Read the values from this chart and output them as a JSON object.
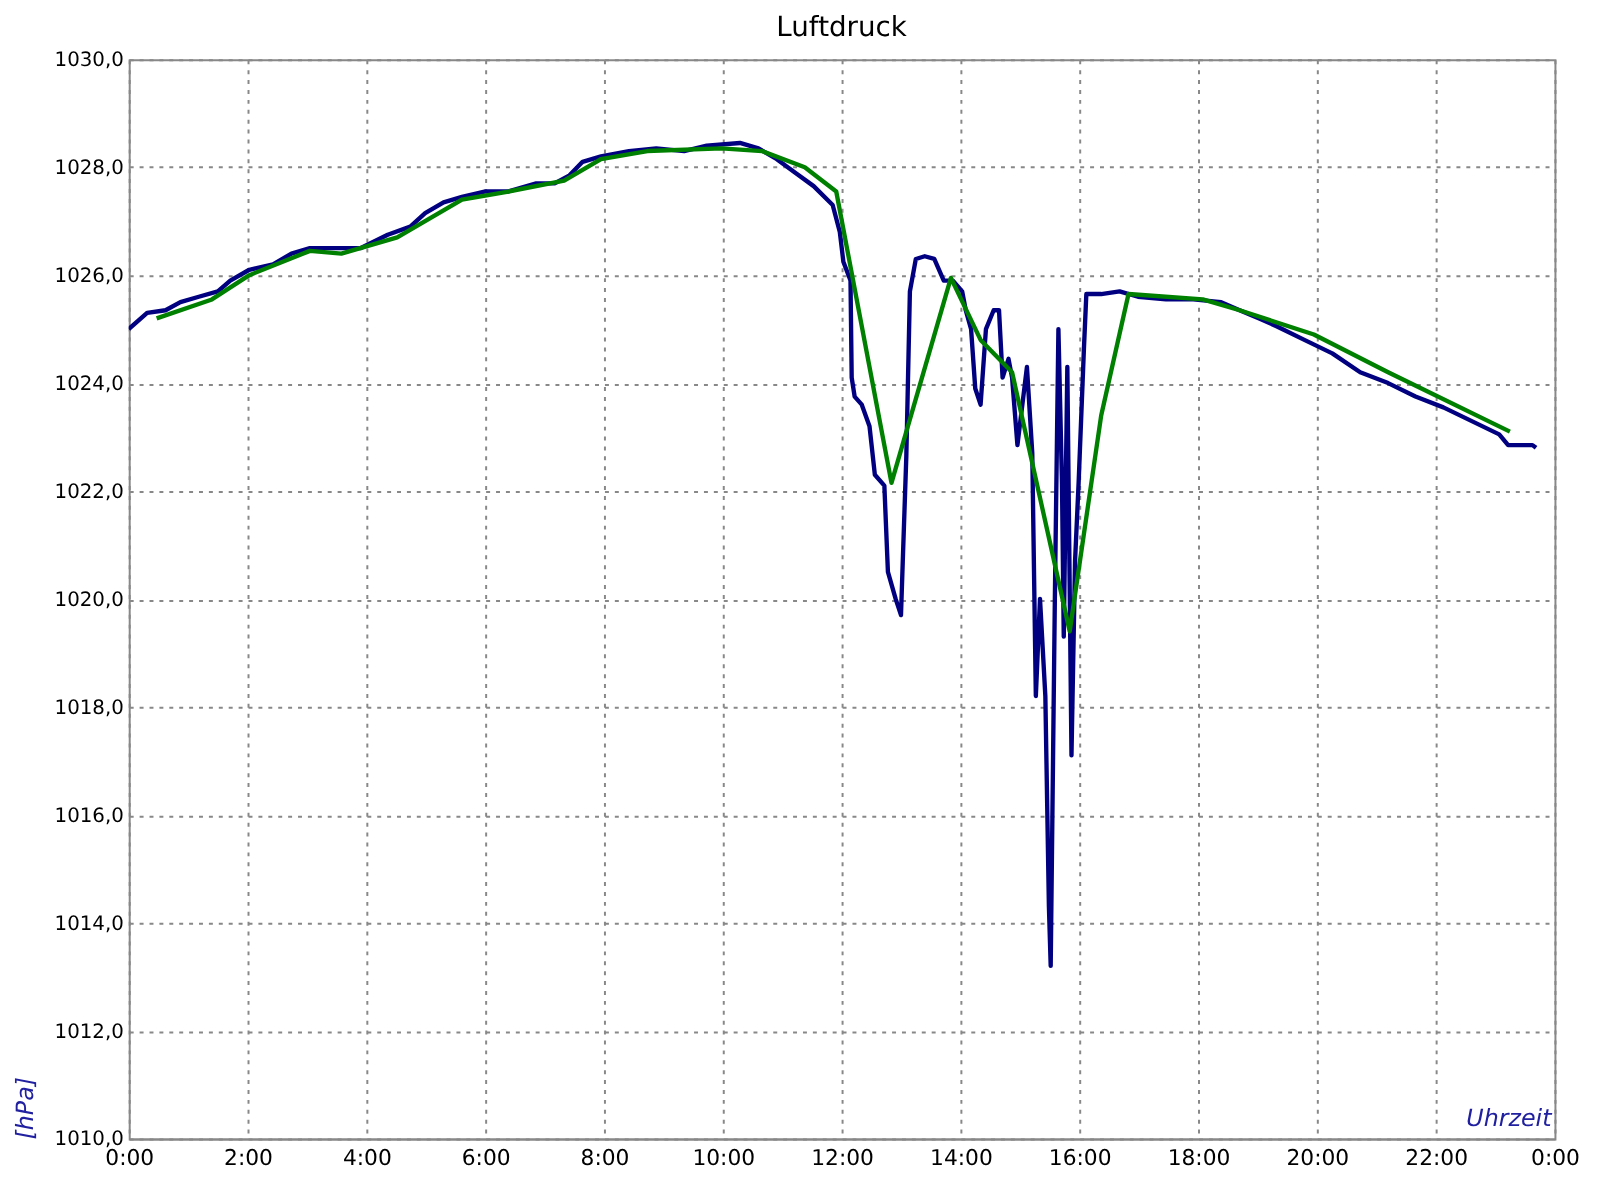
{
  "chart_data": {
    "type": "line",
    "title": "Luftdruck",
    "xlabel": "Uhrzeit",
    "ylabel": "[hPa]",
    "xlim": [
      0,
      24
    ],
    "ylim": [
      1010,
      1030
    ],
    "xticks": [
      {
        "value": 0,
        "label": "0:00"
      },
      {
        "value": 2,
        "label": "2:00"
      },
      {
        "value": 4,
        "label": "4:00"
      },
      {
        "value": 6,
        "label": "6:00"
      },
      {
        "value": 8,
        "label": "8:00"
      },
      {
        "value": 10,
        "label": "10:00"
      },
      {
        "value": 12,
        "label": "12:00"
      },
      {
        "value": 14,
        "label": "14:00"
      },
      {
        "value": 16,
        "label": "16:00"
      },
      {
        "value": 18,
        "label": "18:00"
      },
      {
        "value": 20,
        "label": "20:00"
      },
      {
        "value": 22,
        "label": "22:00"
      },
      {
        "value": 24,
        "label": "0:00"
      }
    ],
    "yticks": [
      {
        "value": 1010,
        "label": "1010,0"
      },
      {
        "value": 1012,
        "label": "1012,0"
      },
      {
        "value": 1014,
        "label": "1014,0"
      },
      {
        "value": 1016,
        "label": "1016,0"
      },
      {
        "value": 1018,
        "label": "1018,0"
      },
      {
        "value": 1020,
        "label": "1020,0"
      },
      {
        "value": 1022,
        "label": "1022,0"
      },
      {
        "value": 1024,
        "label": "1024,0"
      },
      {
        "value": 1026,
        "label": "1026,0"
      },
      {
        "value": 1028,
        "label": "1028,0"
      },
      {
        "value": 1030,
        "label": "1030,0"
      }
    ],
    "grid": true,
    "marker": "none",
    "line_style": "solid",
    "series": [
      {
        "color": "#000080",
        "x": [
          0,
          0.31,
          0.62,
          0.87,
          1.18,
          1.5,
          1.71,
          2.03,
          2.43,
          2.74,
          3.05,
          3.43,
          3.9,
          4.36,
          4.74,
          4.99,
          5.3,
          5.61,
          5.99,
          6.39,
          6.86,
          7.17,
          7.42,
          7.64,
          7.95,
          8.42,
          8.88,
          9.35,
          9.73,
          10.29,
          10.6,
          10.91,
          11.22,
          11.53,
          11.85,
          11.97,
          12.03,
          12.15,
          12.17,
          12.22,
          12.34,
          12.47,
          12.56,
          12.72,
          12.78,
          12.91,
          13.0,
          13.03,
          13.09,
          13.15,
          13.25,
          13.4,
          13.56,
          13.72,
          13.87,
          14.03,
          14.09,
          14.18,
          14.25,
          14.34,
          14.43,
          14.56,
          14.65,
          14.71,
          14.81,
          14.87,
          14.96,
          15.12,
          15.21,
          15.27,
          15.34,
          15.43,
          15.49,
          15.52,
          15.59,
          15.65,
          15.71,
          15.74,
          15.8,
          15.87,
          15.93,
          15.99,
          16.08,
          16.12,
          16.37,
          16.68,
          16.99,
          17.46,
          17.92,
          18.39,
          18.7,
          19.02,
          19.33,
          19.79,
          20.26,
          20.73,
          21.2,
          21.66,
          22.13,
          22.6,
          23.07,
          23.22,
          23.63,
          23.69
        ],
        "values": [
          1025.0,
          1025.3,
          1025.35,
          1025.5,
          1025.6,
          1025.7,
          1025.9,
          1026.1,
          1026.2,
          1026.4,
          1026.5,
          1026.5,
          1026.5,
          1026.75,
          1026.9,
          1027.15,
          1027.35,
          1027.45,
          1027.55,
          1027.55,
          1027.7,
          1027.7,
          1027.85,
          1028.1,
          1028.2,
          1028.3,
          1028.35,
          1028.3,
          1028.4,
          1028.45,
          1028.35,
          1028.15,
          1027.9,
          1027.65,
          1027.3,
          1026.8,
          1026.25,
          1025.9,
          1024.1,
          1023.75,
          1023.6,
          1023.2,
          1022.3,
          1022.1,
          1020.5,
          1020.0,
          1019.7,
          1020.7,
          1022.65,
          1025.7,
          1026.3,
          1026.35,
          1026.3,
          1025.9,
          1025.9,
          1025.7,
          1025.35,
          1025.0,
          1023.9,
          1023.6,
          1025.0,
          1025.35,
          1025.35,
          1024.1,
          1024.45,
          1024.1,
          1022.85,
          1024.3,
          1022.7,
          1018.2,
          1020.0,
          1018.2,
          1014.3,
          1013.2,
          1020.0,
          1025.0,
          1022.15,
          1019.3,
          1024.3,
          1017.1,
          1020.7,
          1022.15,
          1024.65,
          1025.65,
          1025.65,
          1025.7,
          1025.6,
          1025.55,
          1025.55,
          1025.5,
          1025.35,
          1025.2,
          1025.05,
          1024.8,
          1024.55,
          1024.2,
          1024.0,
          1023.75,
          1023.55,
          1023.3,
          1023.05,
          1022.85,
          1022.85,
          1022.8
        ]
      },
      {
        "color": "#008000",
        "x": [
          0.47,
          1.4,
          2.03,
          3.05,
          3.58,
          4.52,
          5.61,
          6.39,
          7.33,
          7.95,
          8.73,
          9.98,
          10.66,
          11.38,
          11.91,
          12.84,
          13.84,
          14.34,
          14.87,
          15.84,
          16.37,
          16.83,
          18.08,
          18.7,
          19.95,
          21.2,
          23.25
        ],
        "values": [
          1025.2,
          1025.55,
          1026.0,
          1026.45,
          1026.4,
          1026.7,
          1027.4,
          1027.55,
          1027.75,
          1028.15,
          1028.3,
          1028.35,
          1028.3,
          1028.0,
          1027.55,
          1022.15,
          1025.95,
          1024.8,
          1024.2,
          1019.4,
          1023.4,
          1025.65,
          1025.55,
          1025.35,
          1024.9,
          1024.2,
          1023.1
        ]
      }
    ]
  }
}
